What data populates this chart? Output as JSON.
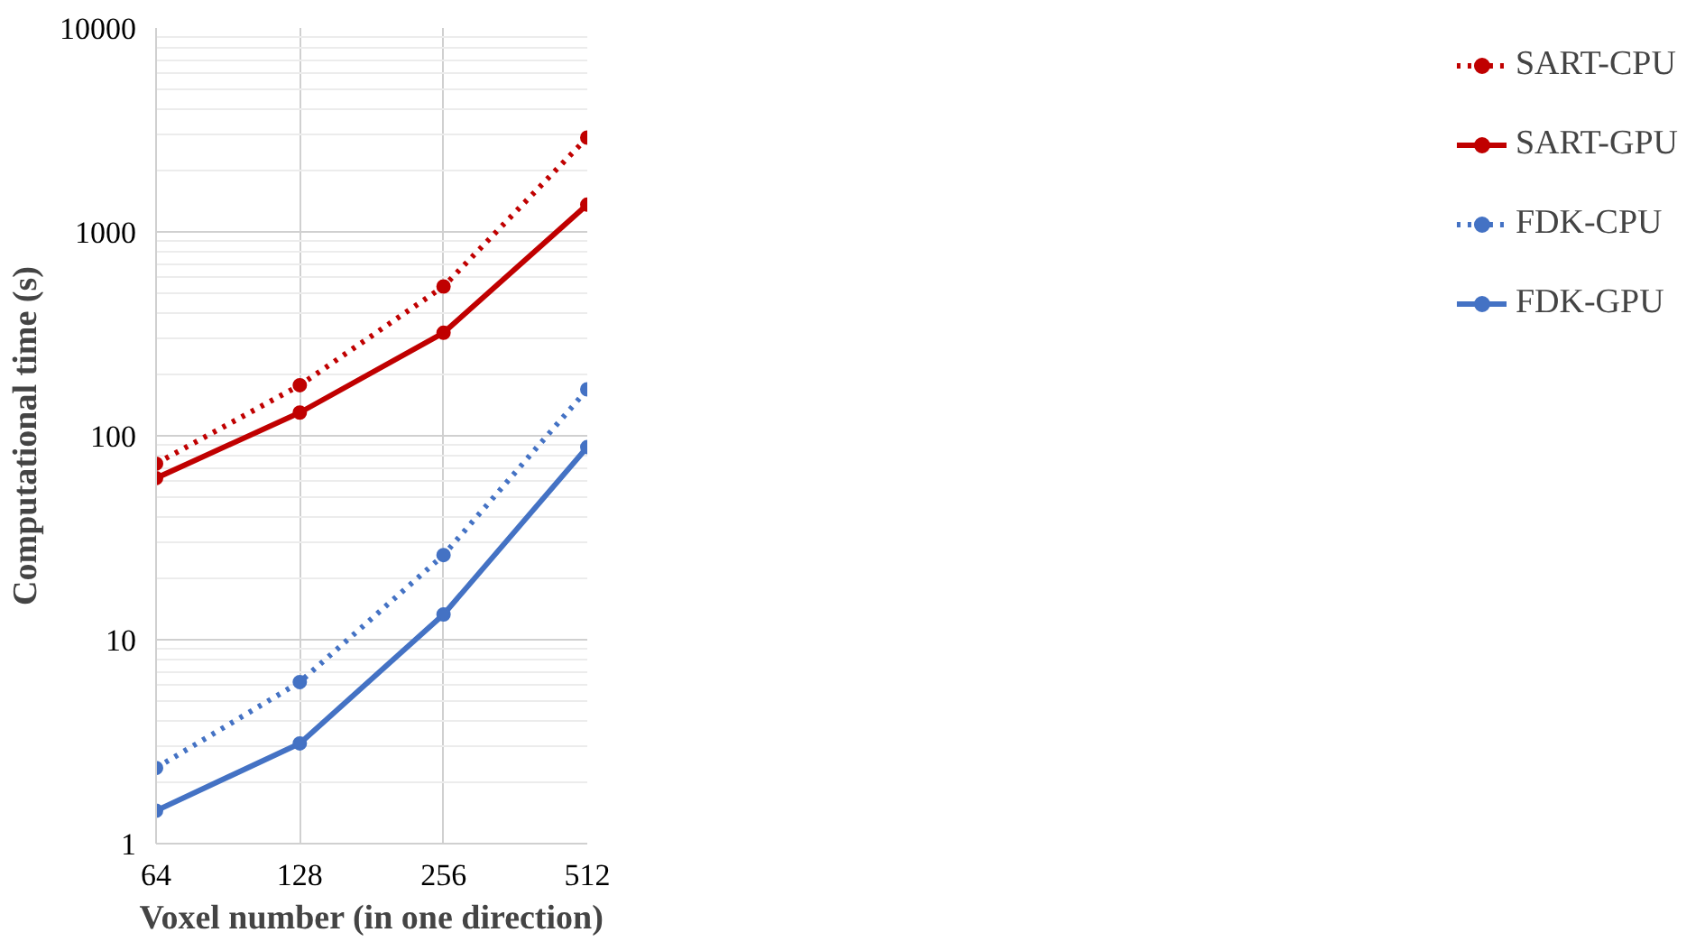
{
  "chart_data": {
    "type": "line",
    "xlabel": "Voxel number (in one direction)",
    "ylabel": "Computational time (s)",
    "x": [
      64,
      128,
      256,
      512
    ],
    "xlim": [
      64,
      512
    ],
    "xticks": [
      64,
      128,
      256,
      512
    ],
    "ylim": [
      1,
      10000
    ],
    "yticks": [
      1,
      10,
      100,
      1000,
      10000
    ],
    "log": "xy",
    "grid": true,
    "legend": "right",
    "marker": "circle",
    "series": [
      {
        "name": "SART-CPU",
        "color": "#c00000",
        "line_style": "dotted",
        "values": [
          73,
          177,
          540,
          2900
        ]
      },
      {
        "name": "SART-GPU",
        "color": "#c00000",
        "line_style": "solid",
        "values": [
          62,
          130,
          320,
          1360
        ]
      },
      {
        "name": "FDK-CPU",
        "color": "#4472c4",
        "line_style": "dotted",
        "values": [
          2.35,
          6.2,
          26,
          169
        ]
      },
      {
        "name": "FDK-GPU",
        "color": "#4472c4",
        "line_style": "solid",
        "values": [
          1.45,
          3.1,
          13.3,
          88
        ]
      }
    ]
  }
}
